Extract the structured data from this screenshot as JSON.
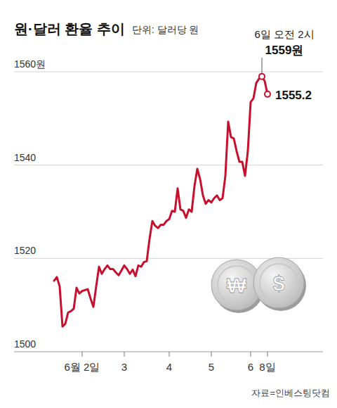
{
  "chart_data": {
    "type": "line",
    "title": "원·달러 환율 추이",
    "subtitle": "단위: 달러당 원",
    "source": "자료=인베스팅닷컴",
    "color": "#c8102e",
    "grid": true,
    "ylim": [
      1500,
      1560
    ],
    "yticks": [
      1500,
      1520,
      1540,
      {
        "value": 1560,
        "label": "1560원"
      }
    ],
    "categories": [
      null,
      null,
      null,
      null,
      null,
      null,
      null,
      null,
      null,
      null,
      "6월 2일",
      null,
      null,
      null,
      null,
      null,
      null,
      null,
      null,
      null,
      null,
      null,
      null,
      null,
      null,
      "3",
      null,
      null,
      null,
      null,
      null,
      null,
      null,
      null,
      null,
      null,
      null,
      null,
      null,
      null,
      null,
      "4",
      null,
      null,
      null,
      null,
      null,
      null,
      null,
      null,
      null,
      null,
      null,
      null,
      null,
      null,
      "5",
      null,
      null,
      null,
      null,
      null,
      null,
      null,
      null,
      null,
      null,
      null,
      null,
      null,
      "6",
      null,
      null,
      null,
      null,
      null,
      "8일"
    ],
    "values": [
      1515.2,
      1516,
      1514,
      1505.4,
      1506,
      1508.4,
      1508.7,
      1509.2,
      1513.7,
      1512.5,
      1513,
      1513.2,
      1513.4,
      1511.4,
      1509.6,
      1514,
      1518.2,
      1516.7,
      1517.7,
      1518.5,
      1517.7,
      1517.7,
      1517,
      1516.4,
      1517.4,
      1518.5,
      1517.7,
      1516.7,
      1517.6,
      1516.2,
      1518.5,
      1518.2,
      1519.2,
      1519.4,
      1524.2,
      1528,
      1527,
      1526.5,
      1527.2,
      1527.2,
      1528,
      1528.4,
      1530.2,
      1530,
      1535,
      1530.5,
      1530.2,
      1528.7,
      1530.5,
      1530,
      1535.5,
      1539.2,
      1537,
      1533.5,
      1531.7,
      1532.5,
      1532,
      1532.9,
      1533.5,
      1532.5,
      1532.9,
      1537.7,
      1549.3,
      1546,
      1545.7,
      1543,
      1540.7,
      1540.7,
      1537.7,
      1543,
      1553.5,
      1554.3,
      1557.6,
      1558.5,
      1559,
      1558,
      1555.2
    ],
    "annotations": [
      {
        "text": "6일 오전 2시",
        "point": 74
      },
      {
        "text": "1559원",
        "point": 74
      },
      {
        "text": "1555.2",
        "point": 76
      }
    ],
    "illustration": {
      "symbols": [
        "₩",
        "$"
      ]
    }
  }
}
